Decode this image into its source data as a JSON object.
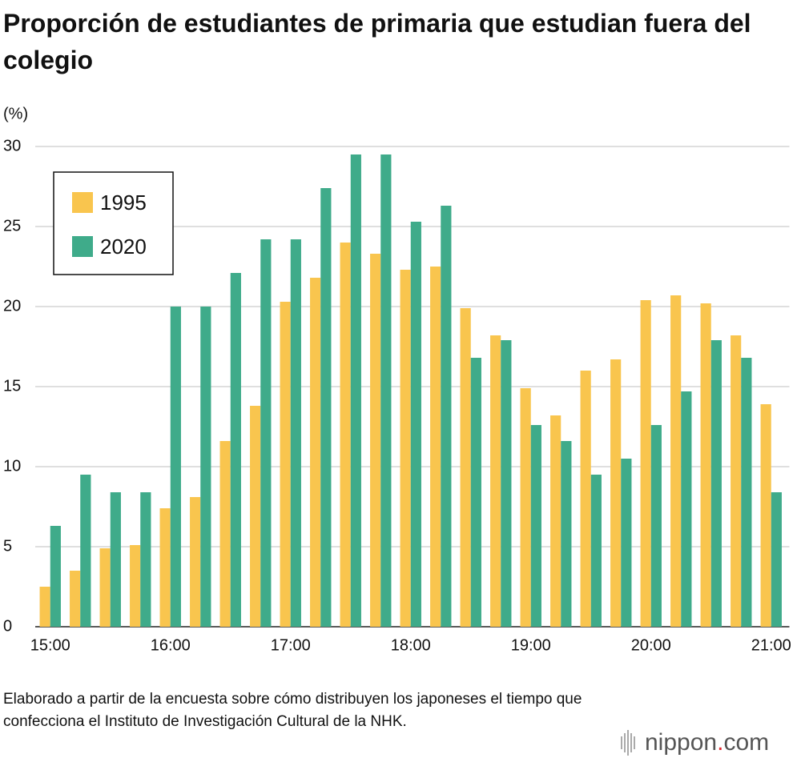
{
  "chart_data": {
    "type": "bar",
    "title": "Proporción de estudiantes de primaria que estudian fuera del colegio",
    "y_label": "(%)",
    "categories": [
      "15:00",
      null,
      null,
      null,
      "16:00",
      null,
      null,
      null,
      "17:00",
      null,
      null,
      null,
      "18:00",
      null,
      null,
      null,
      "19:00",
      null,
      null,
      null,
      "20:00",
      null,
      null,
      null,
      "21:00"
    ],
    "series": [
      {
        "name": "1995",
        "color": "#f9c54e",
        "values": [
          2.5,
          3.5,
          4.9,
          5.1,
          7.4,
          8.1,
          11.6,
          13.8,
          20.3,
          21.8,
          24,
          23.3,
          22.3,
          22.5,
          19.9,
          18.2,
          14.9,
          13.2,
          16,
          16.7,
          20.4,
          20.7,
          20.2,
          18.2,
          13.9
        ]
      },
      {
        "name": "2020",
        "color": "#3fab8a",
        "values": [
          6.3,
          9.5,
          8.4,
          8.4,
          20,
          20,
          22.1,
          24.2,
          24.2,
          27.4,
          29.5,
          29.5,
          25.3,
          26.3,
          16.8,
          17.9,
          12.6,
          11.6,
          9.5,
          10.5,
          12.6,
          14.7,
          17.9,
          16.8,
          8.4
        ]
      }
    ],
    "ylim": [
      0,
      30
    ],
    "yticks": [
      0,
      5,
      10,
      15,
      20,
      25,
      30
    ],
    "grid": true,
    "legend": "upper left",
    "note": "Elaborado a partir de la encuesta sobre cómo distribuyen los japoneses el tiempo que confecciona el Instituto de Investigación Cultural de la NHK.",
    "brand": {
      "name": "nippon",
      "dot": ".",
      "suffix": "com"
    }
  }
}
